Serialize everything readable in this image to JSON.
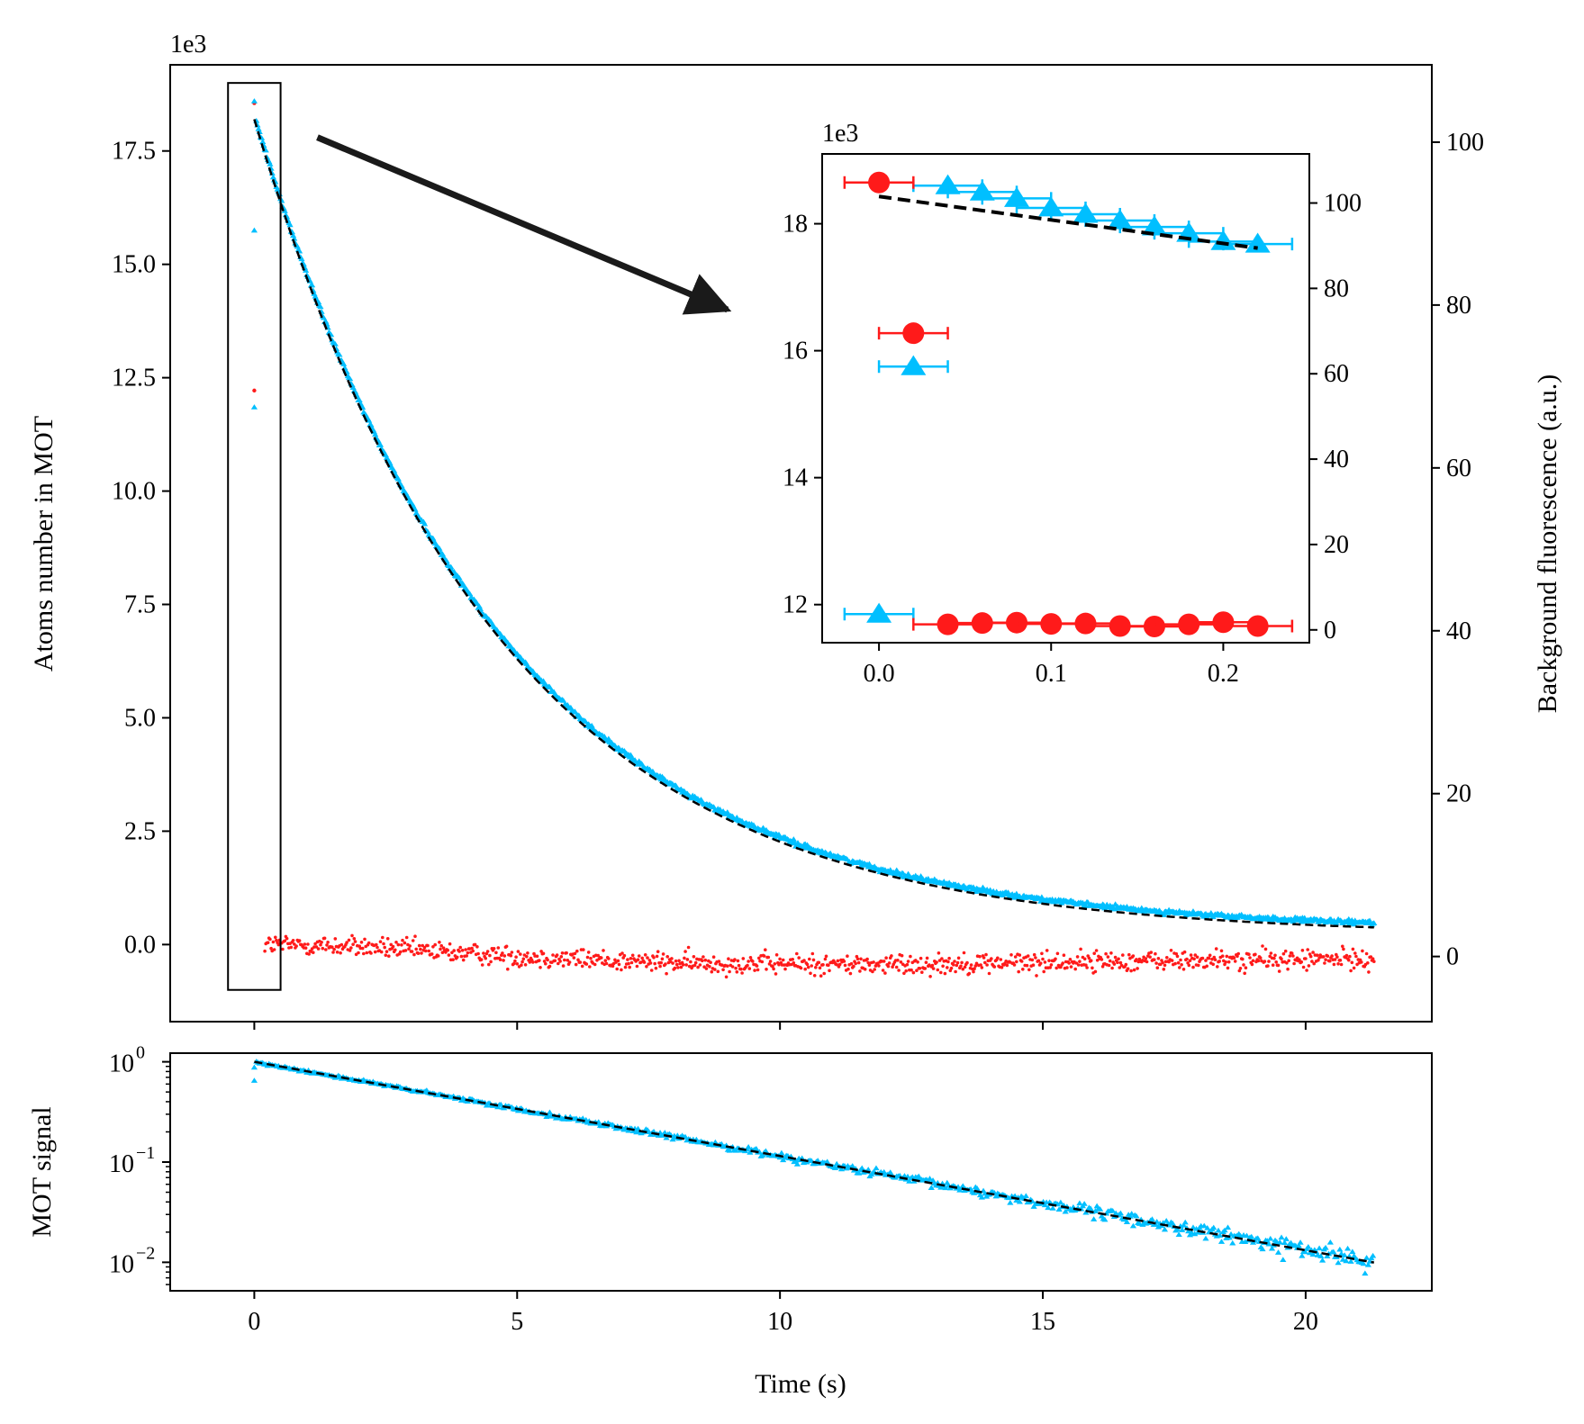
{
  "chart_data": [
    {
      "id": "main",
      "type": "scatter",
      "xlabel": "",
      "ylabel": "Atoms number in MOT",
      "y_offset_text": "1e3",
      "y_scale_factor": 1000,
      "xlim": [
        -1.6,
        22.4
      ],
      "ylim": [
        -1.7,
        19.4
      ],
      "x_ticks": [
        0,
        5,
        10,
        15,
        20
      ],
      "y_ticks": [
        0.0,
        2.5,
        5.0,
        7.5,
        10.0,
        12.5,
        15.0,
        17.5
      ],
      "y_tick_labels": [
        "0.0",
        "2.5",
        "5.0",
        "7.5",
        "10.0",
        "12.5",
        "15.0",
        "17.5"
      ],
      "y2label": "Background fluorescence (a.u.)",
      "y2lim": [
        -8.0,
        109.5
      ],
      "y2_ticks": [
        0,
        20,
        40,
        60,
        80,
        100
      ],
      "y2_tick_labels": [
        "0",
        "20",
        "40",
        "60",
        "80",
        "100"
      ],
      "series": [
        {
          "role": "atoms",
          "marker": "triangle",
          "color": "#00BFFF",
          "axis": "left",
          "model": {
            "N0": 18.0,
            "tau": 4.62,
            "t_start": 0.04,
            "t_end": 21.3,
            "step": 0.02
          },
          "extra_points": [
            {
              "x": 0.0,
              "y": 15.75
            },
            {
              "x": 0.0,
              "y": 11.85
            },
            {
              "x": 0.0,
              "y": 18.6
            }
          ]
        },
        {
          "role": "background",
          "marker": "dot",
          "color": "#FF1A1A",
          "axis": "right",
          "trend": [
            [
              0.2,
              1.5
            ],
            [
              2.0,
              1.2
            ],
            [
              5.0,
              0.0
            ],
            [
              8.0,
              -0.8
            ],
            [
              12.0,
              -1.0
            ],
            [
              16.0,
              -0.6
            ],
            [
              21.3,
              -0.3
            ]
          ],
          "t_start": 0.2,
          "t_end": 21.3,
          "step": 0.02,
          "extra_points": [
            {
              "x": 0.0,
              "y": 104.8
            },
            {
              "x": 0.0,
              "y": 69.5
            }
          ]
        },
        {
          "role": "fit",
          "style": "dashed",
          "color": "#000000",
          "axis": "left",
          "model": {
            "N0": 18.0,
            "tau": 4.62,
            "t_start": 0.0,
            "t_end": 21.3
          }
        }
      ],
      "zoom_box": {
        "x": [
          -0.5,
          0.5
        ],
        "y": [
          -1.0,
          19.0
        ]
      },
      "arrow": {
        "from": [
          1.2,
          17.8
        ],
        "to": [
          9.0,
          14.0
        ]
      }
    },
    {
      "id": "inset",
      "type": "scatter",
      "y_offset_text": "1e3",
      "xlim": [
        -0.033,
        0.25
      ],
      "ylim": [
        11.4,
        19.1
      ],
      "x_ticks": [
        0.0,
        0.1,
        0.2
      ],
      "x_tick_labels": [
        "0.0",
        "0.1",
        "0.2"
      ],
      "y_ticks": [
        12,
        14,
        16,
        18
      ],
      "y_tick_labels": [
        "12",
        "14",
        "16",
        "18"
      ],
      "y2lim": [
        -3.0,
        111.5
      ],
      "y2_ticks": [
        0,
        20,
        40,
        60,
        80,
        100
      ],
      "y2_tick_labels": [
        "0",
        "20",
        "40",
        "60",
        "80",
        "100"
      ],
      "x_error": 0.02,
      "series": [
        {
          "role": "atoms",
          "marker": "triangle",
          "color": "#00BFFF",
          "axis": "left",
          "points": [
            {
              "x": 0.0,
              "y": 11.85
            },
            {
              "x": 0.02,
              "y": 15.75
            },
            {
              "x": 0.04,
              "y": 18.6
            },
            {
              "x": 0.06,
              "y": 18.5
            },
            {
              "x": 0.08,
              "y": 18.4
            },
            {
              "x": 0.1,
              "y": 18.25
            },
            {
              "x": 0.12,
              "y": 18.15
            },
            {
              "x": 0.14,
              "y": 18.05
            },
            {
              "x": 0.16,
              "y": 17.95
            },
            {
              "x": 0.18,
              "y": 17.85
            },
            {
              "x": 0.2,
              "y": 17.72
            },
            {
              "x": 0.22,
              "y": 17.68
            }
          ]
        },
        {
          "role": "background",
          "marker": "circle",
          "color": "#FF1A1A",
          "axis": "right",
          "points": [
            {
              "x": 0.0,
              "y": 104.8
            },
            {
              "x": 0.02,
              "y": 69.5
            },
            {
              "x": 0.04,
              "y": 1.3
            },
            {
              "x": 0.06,
              "y": 1.6
            },
            {
              "x": 0.08,
              "y": 1.7
            },
            {
              "x": 0.1,
              "y": 1.4
            },
            {
              "x": 0.12,
              "y": 1.5
            },
            {
              "x": 0.14,
              "y": 0.9
            },
            {
              "x": 0.16,
              "y": 0.8
            },
            {
              "x": 0.18,
              "y": 1.3
            },
            {
              "x": 0.2,
              "y": 1.8
            },
            {
              "x": 0.22,
              "y": 0.9
            }
          ]
        },
        {
          "role": "fit",
          "style": "dashed",
          "color": "#000000",
          "axis": "left",
          "model": {
            "N0": 18.43,
            "slope": -3.7,
            "t_start": 0.0,
            "t_end": 0.22
          }
        }
      ]
    },
    {
      "id": "log",
      "type": "scatter",
      "xlabel": "Time (s)",
      "ylabel": "MOT signal",
      "yscale": "log",
      "xlim": [
        -1.6,
        22.4
      ],
      "ylim": [
        0.0052,
        1.22
      ],
      "x_ticks": [
        0,
        5,
        10,
        15,
        20
      ],
      "x_tick_labels": [
        "0",
        "5",
        "10",
        "15",
        "20"
      ],
      "y_ticks": [
        1,
        0.1,
        0.01
      ],
      "y_tick_exponents": [
        "0",
        "−1",
        "−2"
      ],
      "y_tick_base": "10",
      "series": [
        {
          "role": "normalized atoms",
          "marker": "triangle",
          "color": "#00BFFF",
          "model": {
            "A": 1.0,
            "tau": 4.62,
            "t_start": 0.04,
            "t_end": 21.3,
            "step": 0.03
          },
          "extra_points": [
            {
              "x": 0.0,
              "y": 0.65
            },
            {
              "x": 0.0,
              "y": 0.88
            }
          ]
        },
        {
          "role": "fit",
          "style": "dashed",
          "color": "#000000",
          "model": {
            "A": 1.0,
            "tau": 4.62,
            "t_start": 0.0,
            "t_end": 21.3
          }
        }
      ]
    }
  ]
}
